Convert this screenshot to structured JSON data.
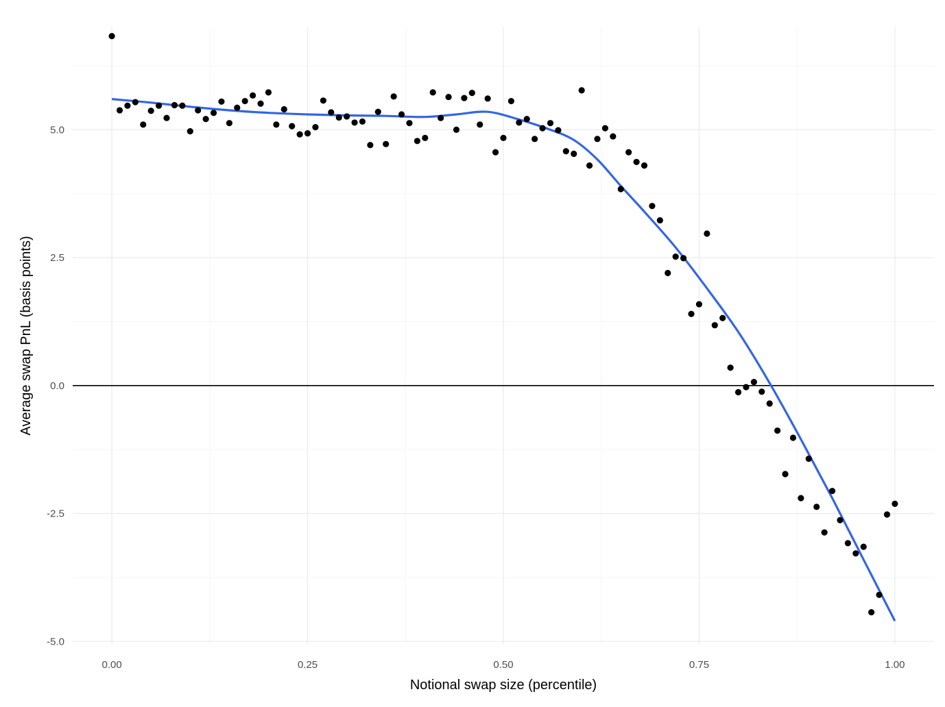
{
  "chart_data": {
    "type": "scatter",
    "xlabel": "Notional swap size (percentile)",
    "ylabel": "Average swap PnL (basis points)",
    "xlim": [
      -0.05,
      1.05
    ],
    "ylim": [
      -5.05,
      7.0
    ],
    "x_ticks": [
      0.0,
      0.25,
      0.5,
      0.75,
      1.0
    ],
    "x_tick_labels": [
      "0.00",
      "0.25",
      "0.50",
      "0.75",
      "1.00"
    ],
    "y_ticks": [
      -5.0,
      -2.5,
      0.0,
      2.5,
      5.0
    ],
    "y_tick_labels": [
      "-5.0",
      "-2.5",
      "0.0",
      "2.5",
      "5.0"
    ],
    "grid": true,
    "hline": 0,
    "colors": {
      "points": "#000000",
      "smooth_line": "#3366e6",
      "grid_major": "#ebebeb",
      "grid_minor": "#f5f5f5",
      "zero_line": "#000000"
    },
    "points": {
      "x": [
        0.0,
        0.01,
        0.02,
        0.03,
        0.04,
        0.05,
        0.06,
        0.07,
        0.08,
        0.09,
        0.1,
        0.11,
        0.12,
        0.13,
        0.14,
        0.15,
        0.16,
        0.17,
        0.18,
        0.19,
        0.2,
        0.21,
        0.22,
        0.23,
        0.24,
        0.25,
        0.26,
        0.27,
        0.28,
        0.29,
        0.3,
        0.31,
        0.32,
        0.33,
        0.34,
        0.35,
        0.36,
        0.37,
        0.38,
        0.39,
        0.4,
        0.41,
        0.42,
        0.43,
        0.44,
        0.45,
        0.46,
        0.47,
        0.48,
        0.49,
        0.5,
        0.51,
        0.52,
        0.53,
        0.54,
        0.55,
        0.56,
        0.57,
        0.58,
        0.59,
        0.6,
        0.61,
        0.62,
        0.63,
        0.64,
        0.65,
        0.66,
        0.67,
        0.68,
        0.69,
        0.7,
        0.71,
        0.72,
        0.73,
        0.74,
        0.75,
        0.76,
        0.77,
        0.78,
        0.79,
        0.8,
        0.81,
        0.82,
        0.83,
        0.84,
        0.85,
        0.86,
        0.87,
        0.88,
        0.89,
        0.9,
        0.91,
        0.92,
        0.93,
        0.94,
        0.95,
        0.96,
        0.97,
        0.98,
        0.99,
        1.0
      ],
      "y": [
        6.83,
        5.38,
        5.47,
        5.54,
        5.1,
        5.37,
        5.47,
        5.23,
        5.48,
        5.47,
        4.97,
        5.38,
        5.21,
        5.33,
        5.55,
        5.13,
        5.43,
        5.56,
        5.67,
        5.51,
        5.73,
        5.1,
        5.4,
        5.07,
        4.91,
        4.93,
        5.05,
        5.57,
        5.34,
        5.24,
        5.26,
        5.14,
        5.16,
        4.7,
        5.35,
        4.72,
        5.65,
        5.3,
        5.13,
        4.78,
        4.84,
        5.73,
        5.23,
        5.64,
        5.0,
        5.62,
        5.72,
        5.1,
        5.61,
        4.56,
        4.84,
        5.56,
        5.14,
        5.21,
        4.82,
        5.03,
        5.13,
        4.99,
        4.58,
        4.53,
        5.77,
        4.3,
        4.82,
        5.03,
        4.87,
        3.84,
        4.56,
        4.37,
        4.3,
        3.51,
        3.23,
        2.2,
        2.52,
        2.49,
        1.4,
        1.59,
        2.97,
        1.18,
        1.32,
        0.35,
        -0.13,
        -0.03,
        0.07,
        -0.12,
        -0.35,
        -0.88,
        -1.73,
        -1.02,
        -2.2,
        -1.43,
        -2.37,
        -2.87,
        -2.06,
        -2.63,
        -3.08,
        -3.28,
        -3.15,
        -4.43,
        -4.09,
        -2.52,
        -2.31
      ]
    },
    "smooth": {
      "x": [
        0.0,
        0.05,
        0.1,
        0.15,
        0.2,
        0.25,
        0.3,
        0.35,
        0.4,
        0.44,
        0.48,
        0.52,
        0.56,
        0.59,
        0.62,
        0.65,
        0.68,
        0.72,
        0.76,
        0.8,
        0.84,
        0.88,
        0.92,
        0.96,
        1.0
      ],
      "y": [
        5.6,
        5.53,
        5.45,
        5.38,
        5.33,
        5.3,
        5.28,
        5.27,
        5.25,
        5.3,
        5.35,
        5.2,
        5.0,
        4.8,
        4.42,
        3.9,
        3.4,
        2.7,
        1.9,
        1.05,
        0.05,
        -1.05,
        -2.2,
        -3.4,
        -4.6
      ]
    }
  }
}
